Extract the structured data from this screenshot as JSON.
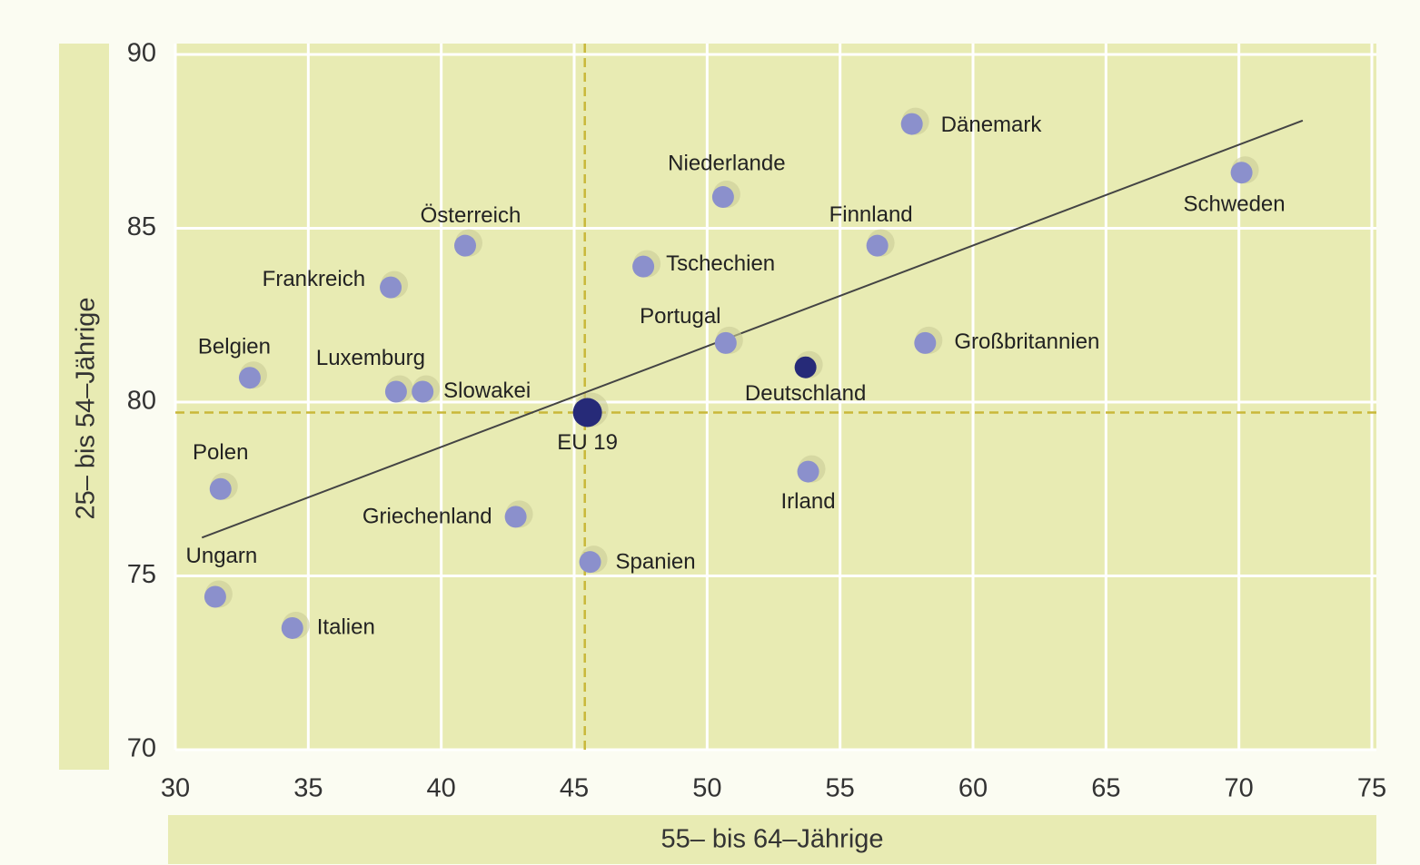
{
  "chart_data": {
    "type": "scatter",
    "x_label": "55– bis 64–Jährige",
    "y_label": "25– bis 54–Jährige",
    "labels": [
      "Dänemark",
      "Schweden",
      "Niederlande",
      "Österreich",
      "Finnland",
      "Tschechien",
      "Frankreich",
      "Portugal",
      "Großbritannien",
      "Deutschland",
      "Belgien",
      "Luxemburg",
      "Slowakei",
      "EU 19",
      "Irland",
      "Polen",
      "Griechenland",
      "Spanien",
      "Ungarn",
      "Italien"
    ],
    "x": [
      57.7,
      70.1,
      50.6,
      40.9,
      56.4,
      47.6,
      38.1,
      50.7,
      58.2,
      53.7,
      32.8,
      38.3,
      39.3,
      45.5,
      53.8,
      31.7,
      42.8,
      45.6,
      31.5,
      34.4
    ],
    "values": [
      88.0,
      86.6,
      85.9,
      84.5,
      84.5,
      83.9,
      83.3,
      81.7,
      81.7,
      81.0,
      80.7,
      80.3,
      80.3,
      79.7,
      78.0,
      77.5,
      76.7,
      75.4,
      74.4,
      73.5
    ],
    "colors": [
      "#8b90cc",
      "#8b90cc",
      "#8b90cc",
      "#8b90cc",
      "#8b90cc",
      "#8b90cc",
      "#8b90cc",
      "#8b90cc",
      "#8b90cc",
      "#262a78",
      "#8b90cc",
      "#8b90cc",
      "#8b90cc",
      "#262a78",
      "#8b90cc",
      "#8b90cc",
      "#8b90cc",
      "#8b90cc",
      "#8b90cc",
      "#8b90cc"
    ],
    "marker_sizes": [
      12,
      12,
      12,
      12,
      12,
      12,
      12,
      12,
      12,
      12,
      12,
      12,
      12,
      16,
      12,
      12,
      12,
      12,
      12,
      12
    ],
    "reference_x": 45.4,
    "reference_y": 79.7,
    "reference_color": "#c9b83a",
    "trend_line": {
      "x": [
        31,
        72.4
      ],
      "y": [
        76.1,
        88.1
      ],
      "color": "#444444"
    },
    "xlim": [
      30,
      75
    ],
    "xticks": [
      30,
      35,
      40,
      45,
      50,
      55,
      60,
      65,
      70,
      75
    ],
    "ylim": [
      70,
      90
    ],
    "yticks": [
      70,
      75,
      80,
      85,
      90
    ],
    "grid": true,
    "background": "#e8ebb3"
  }
}
